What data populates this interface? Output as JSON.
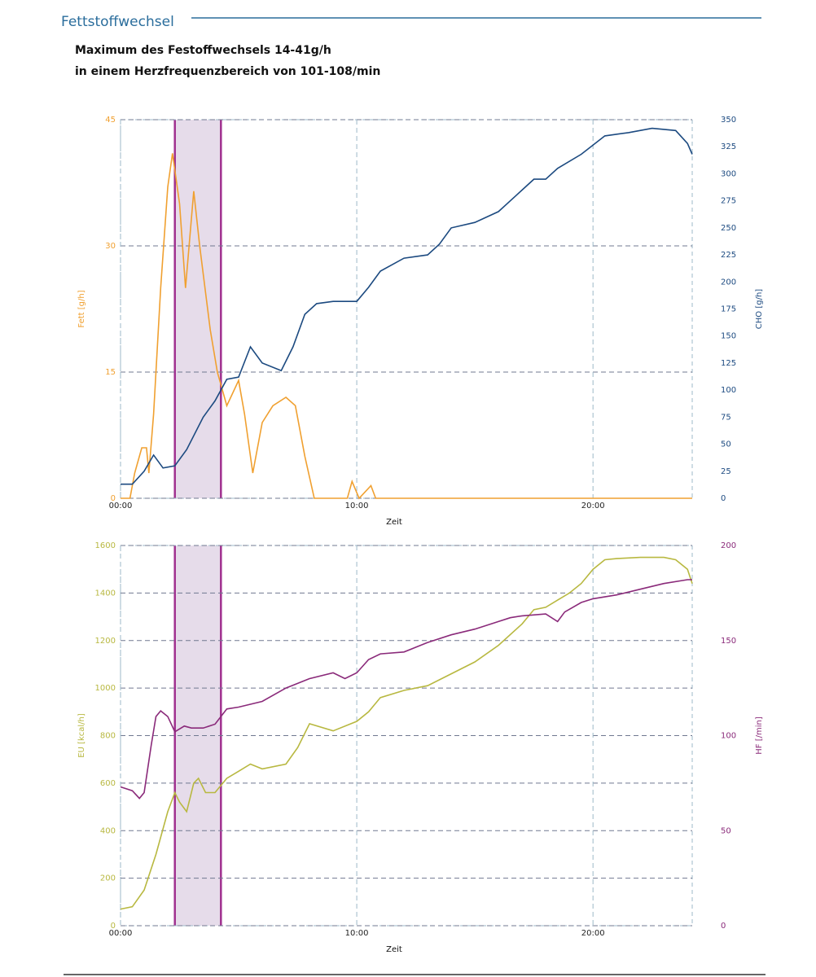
{
  "header": {
    "title": "Fettstoffwechsel",
    "lines": [
      "Maximum des Festoffwechsels 14-41g/h",
      "in einem Herzfrequenzbereich von  101-108/min"
    ]
  },
  "chart_data": [
    {
      "type": "line",
      "xlabel": "Zeit",
      "ylabel": "Fett [g/h]",
      "y2label": "CHO [g/h]",
      "xlim": [
        0,
        24.2
      ],
      "xticks": [
        {
          "value": 0,
          "label": "00:00"
        },
        {
          "value": 10,
          "label": "10:00"
        },
        {
          "value": 20,
          "label": "20:00"
        }
      ],
      "ylim": [
        0,
        45
      ],
      "yticks": [
        0,
        15,
        30,
        45
      ],
      "y2lim": [
        0,
        350
      ],
      "y2ticks": [
        0,
        25,
        50,
        75,
        100,
        125,
        150,
        175,
        200,
        225,
        250,
        275,
        300,
        325,
        350
      ],
      "grid": true,
      "highlight": [
        2.3,
        4.25
      ],
      "highlight_color": "#a0308f",
      "series": [
        {
          "color": "#f0a030",
          "axis": "y",
          "x": [
            0,
            0.4,
            0.6,
            0.9,
            1.1,
            1.2,
            1.4,
            1.7,
            2.0,
            2.2,
            2.5,
            2.75,
            3.1,
            3.35,
            3.8,
            4.1,
            4.5,
            5.0,
            5.25,
            5.6,
            6.0,
            6.45,
            7.0,
            7.4,
            7.8,
            8.2,
            9.6,
            9.8,
            10.1,
            10.6,
            10.8,
            24.2
          ],
          "values": [
            0,
            0,
            3,
            6,
            6,
            3,
            10,
            25,
            37,
            41,
            35,
            25,
            36.5,
            30,
            20,
            15,
            11,
            14,
            10,
            3,
            9,
            11,
            12,
            11,
            5,
            0,
            0,
            2,
            0,
            1.5,
            0,
            0
          ]
        },
        {
          "color": "#1c4a80",
          "axis": "y2",
          "x": [
            0,
            0.5,
            1.0,
            1.4,
            1.8,
            2.3,
            2.8,
            3.5,
            4.0,
            4.5,
            5.0,
            5.5,
            6.0,
            6.8,
            7.3,
            7.8,
            8.3,
            9.0,
            10.0,
            10.5,
            11.0,
            12.0,
            13.0,
            13.5,
            14.0,
            15.0,
            16.0,
            17.0,
            17.5,
            18.0,
            18.5,
            19.5,
            20.5,
            21.5,
            22.5,
            23.5,
            24.0,
            24.2
          ],
          "values": [
            13,
            13,
            25,
            40,
            28,
            30,
            45,
            75,
            90,
            110,
            112,
            140,
            125,
            118,
            140,
            170,
            180,
            182,
            182,
            195,
            210,
            222,
            225,
            235,
            250,
            255,
            265,
            285,
            295,
            295,
            305,
            318,
            335,
            338,
            342,
            340,
            328,
            318
          ]
        }
      ]
    },
    {
      "type": "line",
      "xlabel": "Zeit",
      "ylabel": "EU [kcal/h]",
      "y2label": "HF [/min]",
      "xlim": [
        0,
        24.2
      ],
      "xticks": [
        {
          "value": 0,
          "label": "00:00"
        },
        {
          "value": 10,
          "label": "10:00"
        },
        {
          "value": 20,
          "label": "20:00"
        }
      ],
      "ylim": [
        0,
        1600
      ],
      "yticks": [
        0,
        200,
        400,
        600,
        800,
        1000,
        1200,
        1400,
        1600
      ],
      "y2lim": [
        0,
        200
      ],
      "y2ticks": [
        0,
        50,
        100,
        150,
        200
      ],
      "grid": true,
      "highlight": [
        2.3,
        4.25
      ],
      "highlight_color": "#a0308f",
      "series": [
        {
          "color": "#b8b840",
          "axis": "y",
          "x": [
            0,
            0.5,
            1.0,
            1.5,
            2.0,
            2.3,
            2.5,
            2.8,
            3.1,
            3.3,
            3.6,
            4.0,
            4.5,
            5.0,
            5.5,
            6.0,
            7.0,
            7.5,
            8.0,
            9.0,
            10.0,
            10.5,
            11.0,
            12.0,
            13.0,
            14.0,
            15.0,
            16.0,
            17.0,
            17.5,
            18.0,
            18.5,
            19.0,
            19.5,
            20.0,
            20.5,
            21.0,
            22.0,
            23.0,
            23.5,
            24.0,
            24.2
          ],
          "values": [
            70,
            80,
            150,
            300,
            480,
            560,
            520,
            480,
            600,
            620,
            560,
            560,
            620,
            650,
            680,
            660,
            680,
            750,
            850,
            820,
            860,
            900,
            960,
            990,
            1010,
            1060,
            1110,
            1180,
            1270,
            1330,
            1340,
            1370,
            1400,
            1440,
            1500,
            1540,
            1545,
            1550,
            1550,
            1540,
            1500,
            1440
          ]
        },
        {
          "color": "#8a2a7a",
          "axis": "y2",
          "x": [
            0,
            0.5,
            0.8,
            1.0,
            1.3,
            1.5,
            1.7,
            2.0,
            2.3,
            2.7,
            3.0,
            3.5,
            4.0,
            4.5,
            5.0,
            6.0,
            7.0,
            8.0,
            9.0,
            9.5,
            10.0,
            10.5,
            11.0,
            12.0,
            13.0,
            14.0,
            15.0,
            16.0,
            16.5,
            17.0,
            18.0,
            18.5,
            18.8,
            19.5,
            20.0,
            21.0,
            22.0,
            23.0,
            24.0,
            24.2
          ],
          "values": [
            73,
            71,
            67,
            70,
            95,
            110,
            113,
            110,
            102,
            105,
            104,
            104,
            106,
            114,
            115,
            118,
            125,
            130,
            133,
            130,
            133,
            140,
            143,
            144,
            149,
            153,
            156,
            160,
            162,
            163,
            164,
            160,
            165,
            170,
            172,
            174,
            177,
            180,
            182,
            182
          ]
        }
      ]
    }
  ]
}
